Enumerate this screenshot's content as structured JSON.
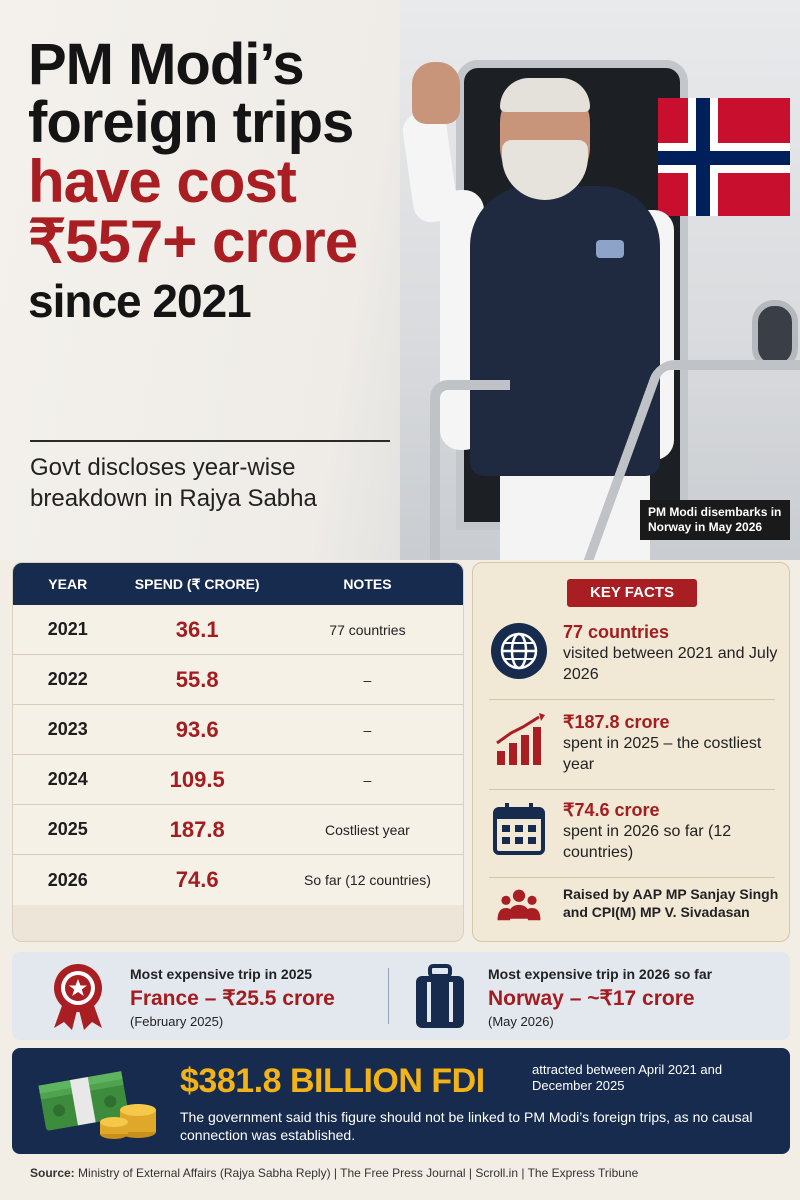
{
  "hero": {
    "title_line1": "PM Modi’s",
    "title_line2": "foreign trips",
    "title_line3": "have cost",
    "title_line4": "₹557+ crore",
    "title_line5": "since 2021",
    "subtitle": "Govt discloses year-wise breakdown in Rajya Sabha",
    "photo_caption": "PM Modi disembarks in Norway in May 2026"
  },
  "table": {
    "headers": {
      "year": "YEAR",
      "spend": "SPEND (₹ CRORE)",
      "notes": "NOTES"
    },
    "rows": [
      {
        "year": "2021",
        "spend": "36.1",
        "notes": "77 countries"
      },
      {
        "year": "2022",
        "spend": "55.8",
        "notes": "–"
      },
      {
        "year": "2023",
        "spend": "93.6",
        "notes": "–"
      },
      {
        "year": "2024",
        "spend": "109.5",
        "notes": "–"
      },
      {
        "year": "2025",
        "spend": "187.8",
        "notes": "Costliest year"
      },
      {
        "year": "2026",
        "spend": "74.6",
        "notes": "So far (12 countries)"
      }
    ]
  },
  "key_facts": {
    "tag": "KEY FACTS",
    "items": [
      {
        "icon": "globe-icon",
        "head": "77 countries",
        "body": "visited between 2021 and July 2026"
      },
      {
        "icon": "rising-chart-icon",
        "head": "₹187.8 crore",
        "body": "spent in 2025 – the costliest year"
      },
      {
        "icon": "calendar-icon",
        "head": "₹74.6 crore",
        "body": "spent in 2026 so far (12 countries)"
      },
      {
        "icon": "people-icon",
        "head": "",
        "body": "Raised by AAP MP Sanjay Singh and CPI(M) MP V. Sivadasan"
      }
    ]
  },
  "trips": {
    "trip_2025": {
      "label": "Most expensive trip in 2025",
      "value": "France – ₹25.5 crore",
      "date": "(February 2025)",
      "icon": "medal-icon"
    },
    "trip_2026": {
      "label": "Most expensive trip in 2026 so far",
      "value": "Norway – ~₹17 crore",
      "date": "(May 2026)",
      "icon": "suitcase-icon"
    }
  },
  "fdi": {
    "amount": "$381.8 BILLION FDI",
    "between": "attracted between April 2021 and December 2025",
    "note": "The government said this figure should not be linked to PM Modi’s foreign trips, as no causal connection was established.",
    "icon": "money-stack-icon"
  },
  "source": {
    "label": "Source:",
    "text": "Ministry of External Affairs (Rajya Sabha Reply) | The Free Press Journal | Scroll.in | The Express Tribune"
  },
  "colors": {
    "accent_red": "#a91e22",
    "navy": "#162b4d",
    "gold": "#f2b21a",
    "cream": "#f1e8d6"
  }
}
